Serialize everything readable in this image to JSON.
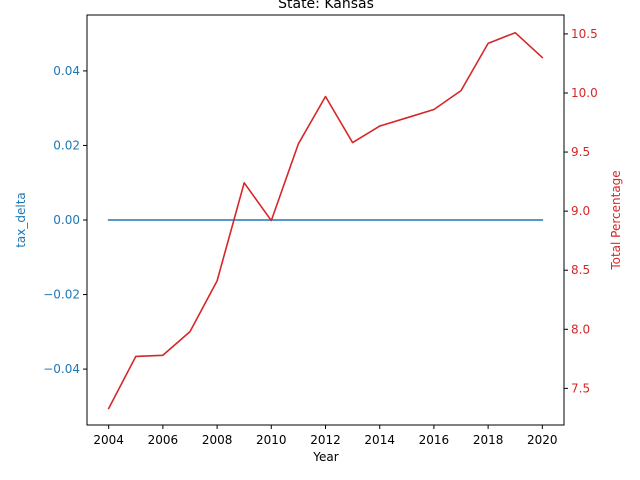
{
  "chart_data": {
    "type": "line",
    "title": "State: Kansas",
    "xlabel": "Year",
    "x": [
      2004,
      2005,
      2006,
      2007,
      2008,
      2009,
      2010,
      2011,
      2012,
      2013,
      2014,
      2015,
      2016,
      2017,
      2018,
      2019,
      2020
    ],
    "xlim": [
      2003.2,
      2020.8
    ],
    "x_ticks": [
      2004,
      2006,
      2008,
      2010,
      2012,
      2014,
      2016,
      2018,
      2020
    ],
    "grid": false,
    "left_axis": {
      "label": "tax_delta",
      "color": "#1f77b4",
      "ylim": [
        -0.055,
        0.055
      ],
      "ticks": [
        -0.04,
        -0.02,
        0.0,
        0.02,
        0.04
      ],
      "tick_labels": [
        "−0.04",
        "−0.02",
        "0.00",
        "0.02",
        "0.04"
      ]
    },
    "right_axis": {
      "label": "Total Percentage",
      "color": "#d62728",
      "ylim": [
        7.19,
        10.66
      ],
      "ticks": [
        7.5,
        8.0,
        8.5,
        9.0,
        9.5,
        10.0,
        10.5
      ],
      "tick_labels": [
        "7.5",
        "8.0",
        "8.5",
        "9.0",
        "9.5",
        "10.0",
        "10.5"
      ]
    },
    "series": [
      {
        "axis": "left",
        "color": "#1f77b4",
        "values": [
          0,
          0,
          0,
          0,
          0,
          0,
          0,
          0,
          0,
          0,
          0,
          0,
          0,
          0,
          0,
          0,
          0
        ]
      },
      {
        "axis": "right",
        "color": "#d62728",
        "values": [
          7.33,
          7.77,
          7.78,
          7.98,
          8.41,
          9.24,
          8.92,
          9.57,
          9.97,
          9.58,
          9.72,
          9.79,
          9.86,
          10.02,
          10.42,
          10.51,
          10.3
        ]
      }
    ]
  }
}
